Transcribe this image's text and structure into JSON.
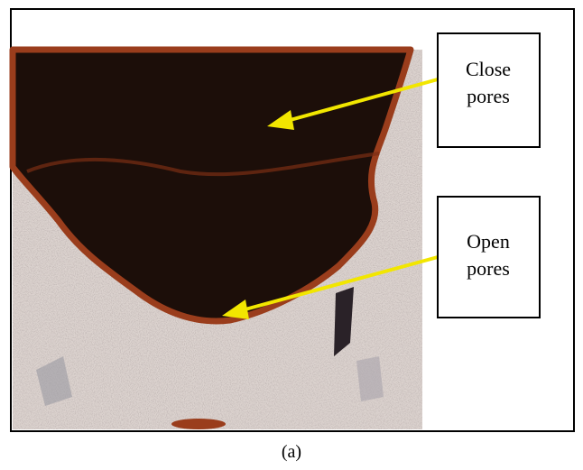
{
  "labels": [
    {
      "lines": [
        "Close",
        "pores"
      ]
    },
    {
      "lines": [
        "Open",
        "pores"
      ]
    }
  ],
  "caption": "(a)"
}
